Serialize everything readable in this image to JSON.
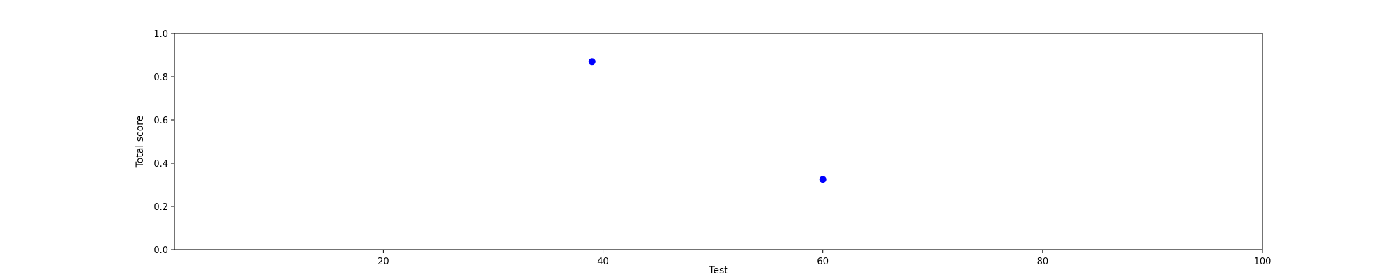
{
  "chart_data": {
    "type": "scatter",
    "title": "",
    "xlabel": "Test",
    "ylabel": "Total score",
    "xlim": [
      1,
      100
    ],
    "ylim": [
      0.0,
      1.0
    ],
    "xticks": [
      20,
      40,
      60,
      80,
      100
    ],
    "yticks": [
      0.0,
      0.2,
      0.4,
      0.6,
      0.8,
      1.0
    ],
    "xtick_labels": [
      "20",
      "40",
      "60",
      "80",
      "100"
    ],
    "ytick_labels": [
      "0.0",
      "0.2",
      "0.4",
      "0.6",
      "0.8",
      "1.0"
    ],
    "grid": false,
    "legend": "none",
    "series": [
      {
        "color": "#0000ff",
        "points": [
          {
            "x": 39,
            "y": 0.87
          },
          {
            "x": 60,
            "y": 0.325
          }
        ]
      }
    ]
  }
}
